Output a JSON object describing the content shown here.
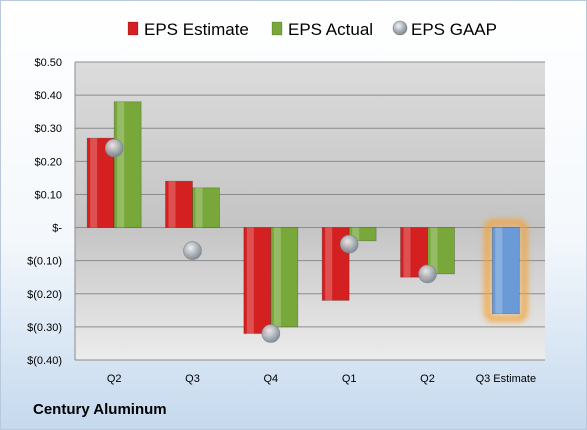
{
  "chart_data": {
    "type": "bar",
    "company": "Century Aluminum",
    "categories": [
      "Q2",
      "Q3",
      "Q4",
      "Q1",
      "Q2",
      "Q3 Estimate"
    ],
    "series": [
      {
        "name": "EPS Estimate",
        "kind": "bar",
        "color": "#d42020",
        "values": [
          0.27,
          0.14,
          -0.32,
          -0.22,
          -0.15,
          -0.26
        ]
      },
      {
        "name": "EPS Actual",
        "kind": "bar",
        "color": "#78a83a",
        "values": [
          0.38,
          0.12,
          -0.3,
          -0.04,
          -0.14,
          null
        ]
      },
      {
        "name": "EPS GAAP",
        "kind": "marker",
        "color": "#9ea6ae",
        "values": [
          0.24,
          -0.07,
          -0.32,
          -0.05,
          -0.14,
          null
        ]
      }
    ],
    "highlight": {
      "category_index": 5,
      "color": "#6a9ad8",
      "glow_color": "#f5a030"
    },
    "yticks": [
      0.5,
      0.4,
      0.3,
      0.2,
      0.1,
      0,
      -0.1,
      -0.2,
      -0.3,
      -0.4
    ],
    "ytick_labels": [
      "$0.50",
      "$0.40",
      "$0.30",
      "$0.20",
      "$0.10",
      "$-",
      "$(0.10)",
      "$(0.20)",
      "$(0.30)",
      "$(0.40)"
    ],
    "ylim": [
      -0.4,
      0.5
    ],
    "grid": true,
    "legend_position": "top"
  }
}
